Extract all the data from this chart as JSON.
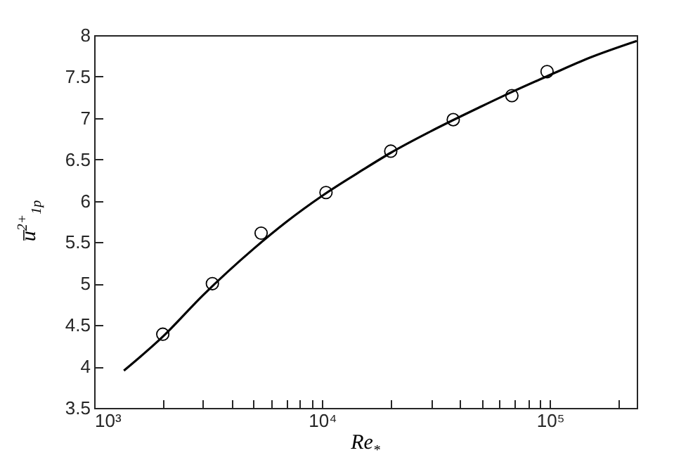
{
  "chart_data": {
    "type": "scatter",
    "xlabel": "Re$_{*}$",
    "ylabel": "u̅$^{2+}$$_{1p}$",
    "log": "x",
    "grid": false,
    "marker": "circle",
    "xlim": [
      1000,
      240000
    ],
    "ylim": [
      3.5,
      8
    ],
    "xticks": [
      {
        "value": 1000,
        "label": "10³"
      },
      {
        "value": 2000,
        "label": null
      },
      {
        "value": 3000,
        "label": null
      },
      {
        "value": 4000,
        "label": null
      },
      {
        "value": 5000,
        "label": null
      },
      {
        "value": 6000,
        "label": null
      },
      {
        "value": 7000,
        "label": null
      },
      {
        "value": 8000,
        "label": null
      },
      {
        "value": 9000,
        "label": null
      },
      {
        "value": 10000,
        "label": "10⁴"
      },
      {
        "value": 20000,
        "label": null
      },
      {
        "value": 30000,
        "label": null
      },
      {
        "value": 40000,
        "label": null
      },
      {
        "value": 50000,
        "label": null
      },
      {
        "value": 60000,
        "label": null
      },
      {
        "value": 70000,
        "label": null
      },
      {
        "value": 80000,
        "label": null
      },
      {
        "value": 90000,
        "label": null
      },
      {
        "value": 100000,
        "label": "10⁵"
      },
      {
        "value": 200000,
        "label": null
      }
    ],
    "yticks": [
      3.5,
      4,
      4.5,
      5,
      5.5,
      6,
      6.5,
      7,
      7.5,
      8
    ],
    "series": [
      {
        "color": "#000000",
        "x": [
          2000,
          3300,
          5400,
          10400,
          20000,
          37600,
          68000,
          97000
        ],
        "values": [
          4.39,
          5.0,
          5.61,
          6.1,
          6.6,
          6.98,
          7.27,
          7.56
        ]
      },
      {
        "type": "line",
        "color": "#000000",
        "line_style": "solid",
        "marker": "none",
        "x": [
          1350,
          2000,
          3000,
          5000,
          7000,
          10000,
          15000,
          20000,
          30000,
          50000,
          70000,
          100000,
          150000,
          240000
        ],
        "values": [
          3.95,
          4.36,
          4.86,
          5.42,
          5.75,
          6.06,
          6.37,
          6.58,
          6.84,
          7.14,
          7.33,
          7.52,
          7.73,
          7.93
        ]
      }
    ]
  }
}
